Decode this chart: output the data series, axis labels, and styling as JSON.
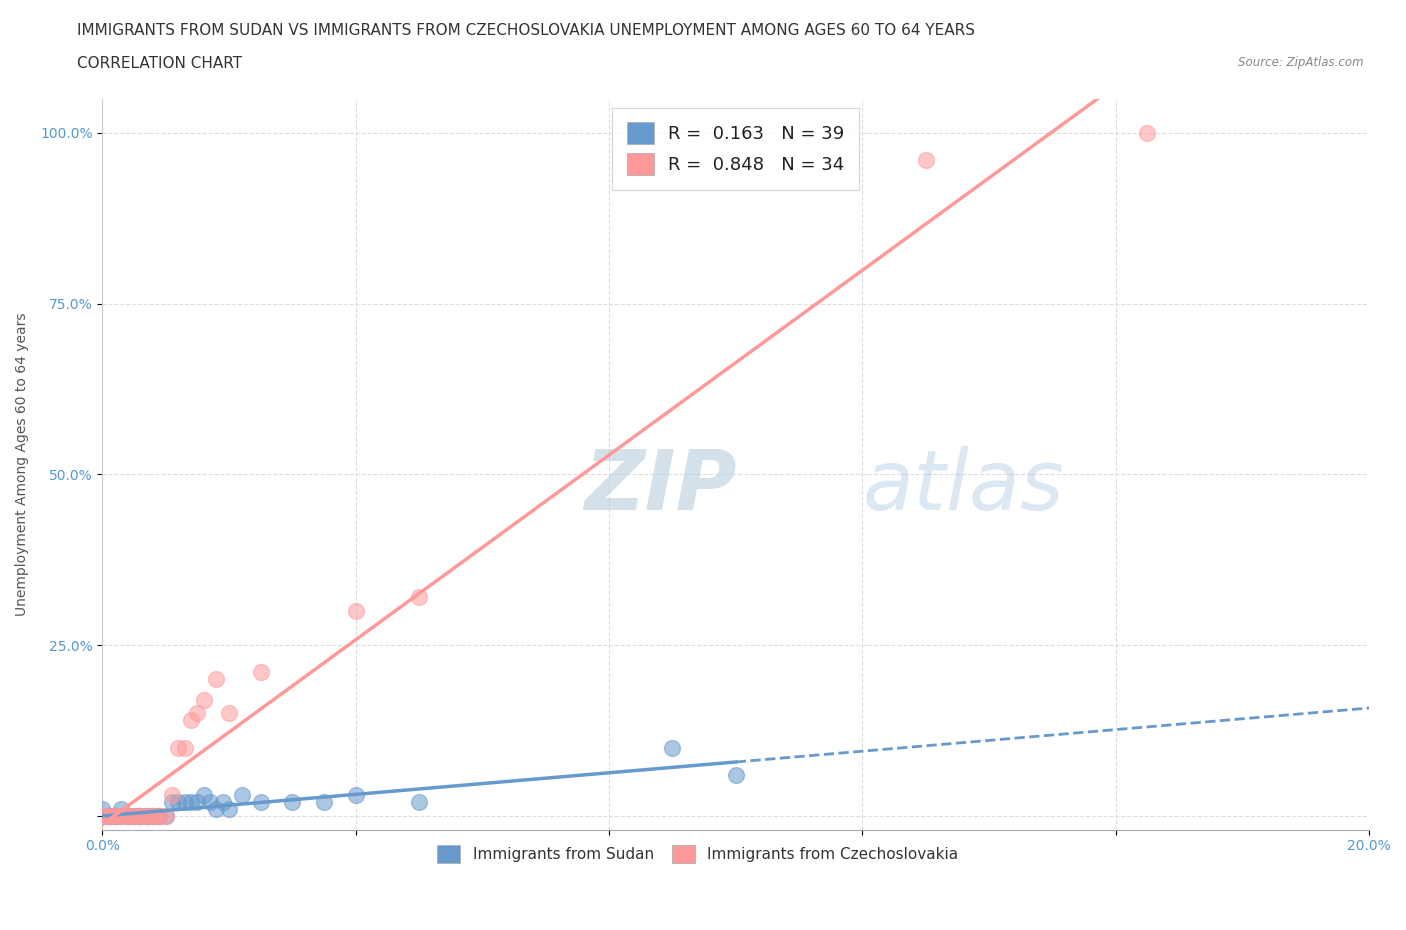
{
  "title_line1": "IMMIGRANTS FROM SUDAN VS IMMIGRANTS FROM CZECHOSLOVAKIA UNEMPLOYMENT AMONG AGES 60 TO 64 YEARS",
  "title_line2": "CORRELATION CHART",
  "source_text": "Source: ZipAtlas.com",
  "ylabel": "Unemployment Among Ages 60 to 64 years",
  "xlim": [
    0.0,
    0.2
  ],
  "ylim": [
    -0.02,
    1.05
  ],
  "x_ticks": [
    0.0,
    0.04,
    0.08,
    0.12,
    0.16,
    0.2
  ],
  "x_tick_labels": [
    "0.0%",
    "",
    "",
    "",
    "",
    "20.0%"
  ],
  "y_ticks": [
    0.0,
    0.25,
    0.5,
    0.75,
    1.0
  ],
  "y_tick_labels": [
    "",
    "25.0%",
    "50.0%",
    "75.0%",
    "100.0%"
  ],
  "sudan_color": "#6699CC",
  "czech_color": "#FF9999",
  "sudan_R": 0.163,
  "sudan_N": 39,
  "czech_R": 0.848,
  "czech_N": 34,
  "sudan_x": [
    0.0,
    0.0,
    0.001,
    0.001,
    0.002,
    0.002,
    0.003,
    0.003,
    0.004,
    0.004,
    0.005,
    0.005,
    0.006,
    0.006,
    0.007,
    0.007,
    0.008,
    0.008,
    0.009,
    0.009,
    0.01,
    0.011,
    0.012,
    0.013,
    0.014,
    0.015,
    0.016,
    0.017,
    0.018,
    0.019,
    0.02,
    0.022,
    0.025,
    0.03,
    0.035,
    0.04,
    0.05,
    0.09,
    0.1
  ],
  "sudan_y": [
    0.0,
    0.01,
    0.0,
    0.0,
    0.0,
    0.0,
    0.0,
    0.01,
    0.0,
    0.0,
    0.0,
    0.0,
    0.0,
    0.0,
    0.0,
    0.0,
    0.0,
    0.0,
    0.0,
    0.0,
    0.0,
    0.02,
    0.02,
    0.02,
    0.02,
    0.02,
    0.03,
    0.02,
    0.01,
    0.02,
    0.01,
    0.03,
    0.02,
    0.02,
    0.02,
    0.03,
    0.02,
    0.1,
    0.06
  ],
  "czech_x": [
    0.0,
    0.0,
    0.001,
    0.001,
    0.002,
    0.002,
    0.003,
    0.003,
    0.004,
    0.004,
    0.005,
    0.005,
    0.006,
    0.006,
    0.007,
    0.007,
    0.008,
    0.008,
    0.009,
    0.009,
    0.01,
    0.011,
    0.012,
    0.013,
    0.014,
    0.015,
    0.016,
    0.018,
    0.02,
    0.025,
    0.04,
    0.05,
    0.13,
    0.165
  ],
  "czech_y": [
    0.0,
    0.0,
    0.0,
    0.0,
    0.0,
    0.0,
    0.0,
    0.0,
    0.0,
    0.0,
    0.0,
    0.0,
    0.0,
    0.0,
    0.0,
    0.0,
    0.0,
    0.0,
    0.0,
    0.0,
    0.0,
    0.03,
    0.1,
    0.1,
    0.14,
    0.15,
    0.17,
    0.2,
    0.15,
    0.21,
    0.3,
    0.32,
    0.96,
    1.0
  ],
  "watermark_zip": "ZIP",
  "watermark_atlas": "atlas",
  "background_color": "#FFFFFF",
  "grid_color": "#DDDDDD",
  "title_fontsize": 11,
  "label_fontsize": 10,
  "tick_fontsize": 10,
  "legend_fontsize": 13,
  "marker_size": 130
}
